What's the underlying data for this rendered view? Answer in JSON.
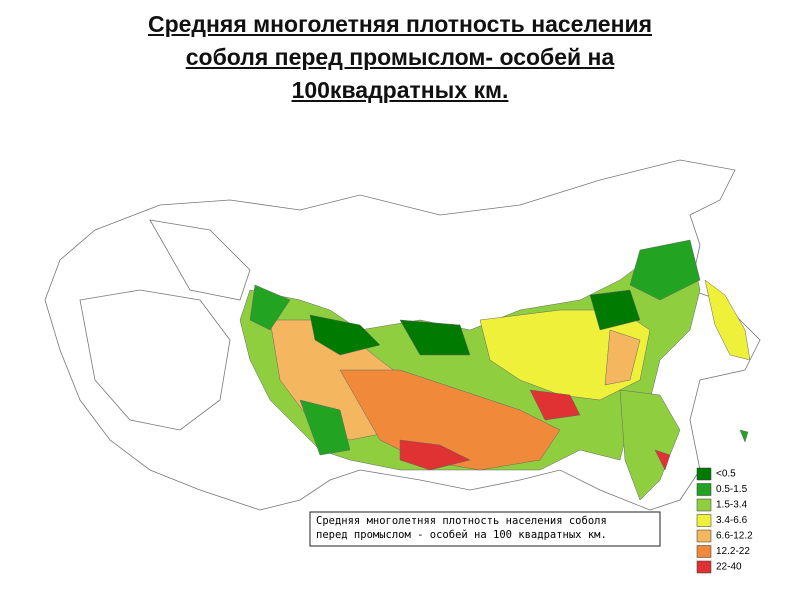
{
  "title_lines": [
    "Средняя многолетняя плотность населения",
    "соболя перед промыслом- особей на",
    "100квадратных км."
  ],
  "map": {
    "caption_lines": [
      "Средняя многолетняя плотность населения соболя",
      "перед промыслом - особей на 100 квадратных км."
    ],
    "legend": [
      {
        "label": "<0.5",
        "color": "#007a00"
      },
      {
        "label": "0.5-1.5",
        "color": "#22a322"
      },
      {
        "label": "1.5-3.4",
        "color": "#8fcf3f"
      },
      {
        "label": "3.4-6.6",
        "color": "#eef03a"
      },
      {
        "label": "6.6-12.2",
        "color": "#f5b660"
      },
      {
        "label": "12.2-22",
        "color": "#f08a3a"
      },
      {
        "label": "22-40",
        "color": "#e03232"
      }
    ]
  }
}
